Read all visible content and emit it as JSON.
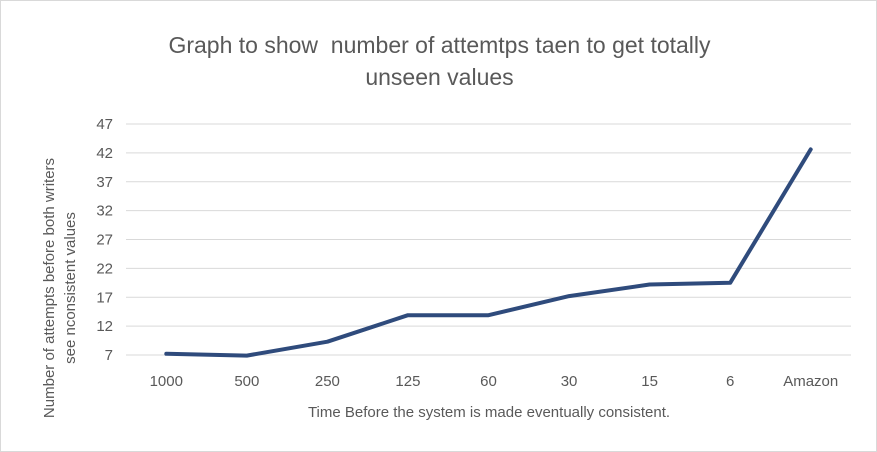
{
  "chart_data": {
    "type": "line",
    "title_line1": "Graph to show  number of attemtps taen to get totally",
    "title_line2": "unseen values",
    "xlabel": "Time Before the system is made eventually consistent.",
    "ylabel_line1": "Number of attempts before both writers",
    "ylabel_line2": "see nconsistent values",
    "categories": [
      "1000",
      "500",
      "250",
      "125",
      "60",
      "30",
      "15",
      "6",
      "Amazon"
    ],
    "series": [
      {
        "values": [
          7.2,
          6.9,
          9.3,
          13.9,
          13.9,
          17.2,
          19.2,
          19.5,
          42.6
        ]
      }
    ],
    "ylim": [
      7,
      47
    ],
    "yticks": [
      7,
      12,
      17,
      22,
      27,
      32,
      37,
      42,
      47
    ],
    "grid": true,
    "legend": "none",
    "line_color": "#2f4b7c",
    "grid_color": "#d9d9d9"
  }
}
